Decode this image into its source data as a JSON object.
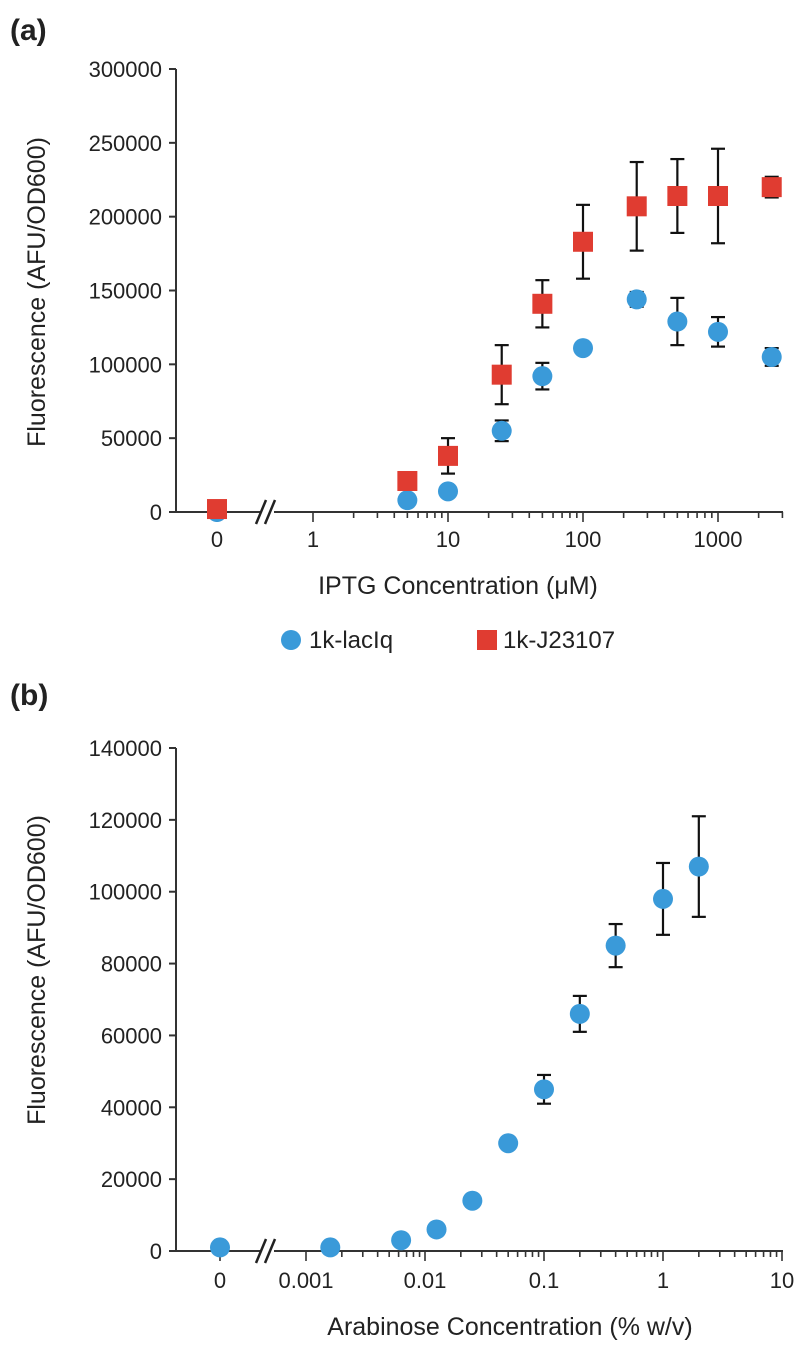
{
  "chart_data": [
    {
      "panel_label": "(a)",
      "type": "scatter",
      "title": "",
      "xlabel": "IPTG Concentration (μM)",
      "ylabel": "Fluorescence (AFU/OD600)",
      "x_scale": "log",
      "x_axis_break": true,
      "x_ticks": [
        "0",
        "1",
        "10",
        "100",
        "1000"
      ],
      "y_ticks": [
        "0",
        "50000",
        "100000",
        "150000",
        "200000",
        "250000",
        "300000"
      ],
      "ylim": [
        0,
        300000
      ],
      "grid": false,
      "legend_position": "bottom",
      "series": [
        {
          "name": "1k-lacIq",
          "marker": "circle",
          "color": "#3a9ad9",
          "x": [
            0,
            5,
            10,
            25,
            50,
            100,
            250,
            500,
            1000,
            2500
          ],
          "y": [
            0,
            8000,
            14000,
            55000,
            92000,
            111000,
            144000,
            129000,
            122000,
            105000
          ],
          "err": [
            0,
            0,
            0,
            7000,
            9000,
            0,
            5000,
            16000,
            10000,
            6000
          ]
        },
        {
          "name": "1k-J23107",
          "marker": "square",
          "color": "#e03c31",
          "x": [
            0,
            5,
            10,
            25,
            50,
            100,
            250,
            500,
            1000,
            2500
          ],
          "y": [
            2000,
            21000,
            38000,
            93000,
            141000,
            183000,
            207000,
            214000,
            214000,
            220000
          ],
          "err": [
            0,
            0,
            12000,
            20000,
            16000,
            25000,
            30000,
            25000,
            32000,
            7000
          ]
        }
      ]
    },
    {
      "panel_label": "(b)",
      "type": "scatter",
      "title": "",
      "xlabel": "Arabinose Concentration (% w/v)",
      "ylabel": "Fluorescence (AFU/OD600)",
      "x_scale": "log",
      "x_axis_break": true,
      "x_ticks": [
        "0",
        "0.001",
        "0.01",
        "0.1",
        "1",
        "10"
      ],
      "y_ticks": [
        "0",
        "20000",
        "40000",
        "60000",
        "80000",
        "100000",
        "120000",
        "140000"
      ],
      "ylim": [
        0,
        140000
      ],
      "grid": false,
      "series": [
        {
          "marker": "circle",
          "color": "#3a9ad9",
          "x": [
            0,
            0.0016,
            0.0063,
            0.0125,
            0.025,
            0.05,
            0.1,
            0.2,
            0.4,
            1,
            2
          ],
          "y": [
            1000,
            1000,
            3000,
            6000,
            14000,
            30000,
            45000,
            66000,
            85000,
            98000,
            107000
          ],
          "err": [
            0,
            0,
            0,
            0,
            0,
            0,
            4000,
            5000,
            6000,
            10000,
            14000
          ]
        }
      ]
    }
  ]
}
